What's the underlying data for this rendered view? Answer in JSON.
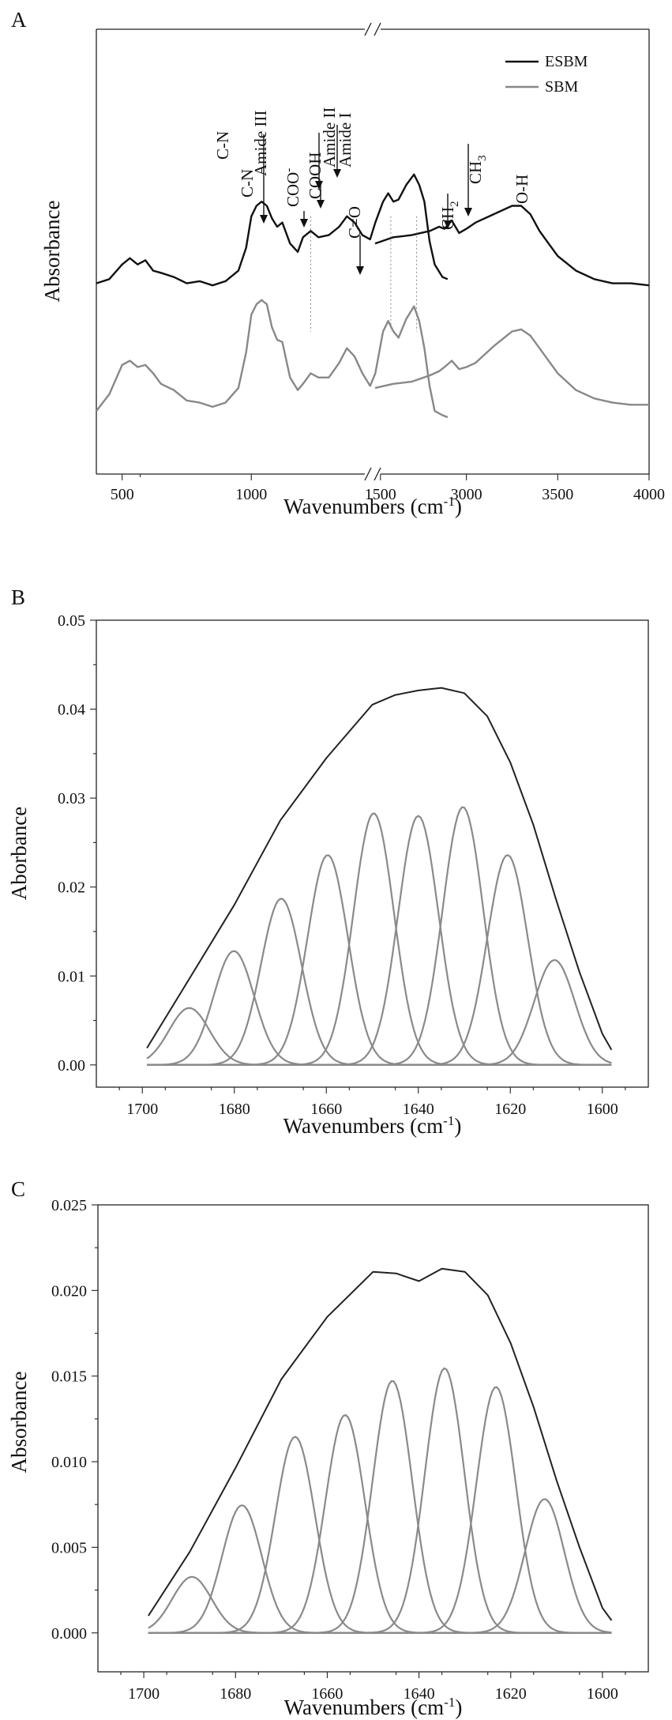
{
  "chart_data": [
    {
      "panel": "A",
      "type": "line",
      "xlabel": "Wavenumbers (cm-1)",
      "xlabel_main": "Wavenumbers (cm",
      "xlabel_sup": "-1",
      "xlabel_end": ")",
      "ylabel": "Absorbance",
      "xticks": [
        "500",
        "1000",
        "1500",
        "3000",
        "3500",
        "4000"
      ],
      "axis_break": true,
      "legend": {
        "position": "top-right",
        "entries": [
          {
            "label": "ESBM",
            "color": "#111111"
          },
          {
            "label": "SBM",
            "color": "#888888"
          }
        ]
      },
      "annotations": [
        {
          "text": "C-N",
          "wavenumber": 1040
        },
        {
          "text": "C-N",
          "wavenumber": 1110
        },
        {
          "text": "Amide III",
          "wavenumber": 1230
        },
        {
          "text": "COO-",
          "wavenumber": 1400
        },
        {
          "text": "COOH",
          "wavenumber": 1460
        },
        {
          "text": "Amide II",
          "wavenumber": 1540
        },
        {
          "text": "Amide I",
          "wavenumber": 1640
        },
        {
          "text": "C=O",
          "wavenumber": 1740
        },
        {
          "text": "CH2",
          "wavenumber": 2850
        },
        {
          "text": "CH3",
          "wavenumber": 2960
        },
        {
          "text": "O-H",
          "wavenumber": 3280
        }
      ],
      "series": [
        {
          "name": "ESBM",
          "color": "#111111",
          "segments": [
            {
              "x": [
                400,
                450,
                500,
                530,
                560,
                590,
                620,
                650,
                700,
                750,
                800,
                850,
                900,
                950,
                980,
                1000,
                1020,
                1040,
                1060,
                1080,
                1100,
                1120,
                1150,
                1180,
                1200,
                1230,
                1260,
                1300,
                1340,
                1370,
                1400,
                1430,
                1460,
                1480,
                1510,
                1530,
                1550,
                1570,
                1600,
                1630,
                1650,
                1670,
                1690,
                1710,
                1740,
                1760
              ],
              "y": [
                0.73,
                0.75,
                0.82,
                0.85,
                0.82,
                0.84,
                0.79,
                0.78,
                0.76,
                0.73,
                0.74,
                0.72,
                0.74,
                0.79,
                0.9,
                1.05,
                1.1,
                1.12,
                1.1,
                1.04,
                1.0,
                1.02,
                0.92,
                0.88,
                0.95,
                0.98,
                0.95,
                0.96,
                1.0,
                1.05,
                1.02,
                0.96,
                0.94,
                1.02,
                1.12,
                1.16,
                1.12,
                1.13,
                1.2,
                1.25,
                1.2,
                1.12,
                0.93,
                0.82,
                0.76,
                0.75
              ]
            },
            {
              "x": [
                2500,
                2600,
                2700,
                2800,
                2850,
                2880,
                2920,
                2960,
                3000,
                3050,
                3150,
                3250,
                3300,
                3350,
                3400,
                3450,
                3500,
                3600,
                3700,
                3800,
                3900,
                4000
              ],
              "y": [
                0.92,
                0.95,
                0.96,
                0.98,
                1.0,
                0.99,
                1.03,
                0.97,
                0.99,
                1.02,
                1.06,
                1.1,
                1.1,
                1.06,
                0.98,
                0.92,
                0.86,
                0.79,
                0.75,
                0.73,
                0.73,
                0.72
              ]
            }
          ]
        },
        {
          "name": "SBM",
          "color": "#888888",
          "segments": [
            {
              "x": [
                400,
                450,
                500,
                530,
                560,
                590,
                620,
                650,
                700,
                750,
                800,
                850,
                900,
                950,
                980,
                1000,
                1020,
                1040,
                1060,
                1080,
                1100,
                1120,
                1150,
                1180,
                1200,
                1230,
                1260,
                1300,
                1340,
                1370,
                1400,
                1430,
                1460,
                1480,
                1510,
                1530,
                1550,
                1570,
                1600,
                1630,
                1650,
                1670,
                1690,
                1710,
                1740,
                1760
              ],
              "y": [
                0.12,
                0.2,
                0.34,
                0.36,
                0.33,
                0.34,
                0.3,
                0.25,
                0.22,
                0.17,
                0.16,
                0.14,
                0.16,
                0.23,
                0.4,
                0.58,
                0.63,
                0.65,
                0.63,
                0.52,
                0.46,
                0.45,
                0.28,
                0.22,
                0.25,
                0.3,
                0.28,
                0.28,
                0.35,
                0.42,
                0.38,
                0.3,
                0.24,
                0.3,
                0.5,
                0.55,
                0.5,
                0.47,
                0.56,
                0.62,
                0.55,
                0.42,
                0.24,
                0.12,
                0.1,
                0.09
              ]
            },
            {
              "x": [
                2500,
                2600,
                2700,
                2800,
                2850,
                2880,
                2920,
                2960,
                3000,
                3050,
                3150,
                3250,
                3300,
                3350,
                3400,
                3450,
                3500,
                3600,
                3700,
                3800,
                3900,
                4000
              ],
              "y": [
                0.23,
                0.25,
                0.26,
                0.29,
                0.31,
                0.33,
                0.36,
                0.32,
                0.33,
                0.35,
                0.43,
                0.5,
                0.51,
                0.48,
                0.42,
                0.36,
                0.3,
                0.22,
                0.18,
                0.16,
                0.15,
                0.15
              ]
            }
          ]
        }
      ]
    },
    {
      "panel": "B",
      "type": "line",
      "xlabel": "Wavenumbers (cm-1)",
      "xlabel_main": "Wavenumbers (cm",
      "xlabel_sup": "-1",
      "xlabel_end": ")",
      "ylabel": "Aborbance",
      "xlim": [
        1710,
        1590
      ],
      "ylim": [
        -0.0025,
        0.05
      ],
      "xticks": [
        "1700",
        "1680",
        "1660",
        "1640",
        "1620",
        "1600"
      ],
      "yticks": [
        "0.00",
        "0.01",
        "0.02",
        "0.03",
        "0.04",
        "0.05"
      ],
      "envelope": {
        "x": [
          1699,
          1690,
          1680,
          1670,
          1660,
          1650,
          1645,
          1640,
          1635,
          1630,
          1625,
          1620,
          1615,
          1610,
          1605,
          1600,
          1598
        ],
        "y": [
          0.0019,
          0.0095,
          0.018,
          0.0275,
          0.0345,
          0.0405,
          0.0416,
          0.0421,
          0.0424,
          0.0418,
          0.0392,
          0.034,
          0.027,
          0.0185,
          0.0105,
          0.0035,
          0.0017
        ]
      },
      "components": [
        {
          "center": 1689.8,
          "height": 0.0064,
          "sigma": 4.4
        },
        {
          "center": 1680.1,
          "height": 0.0128,
          "sigma": 4.4
        },
        {
          "center": 1669.8,
          "height": 0.0187,
          "sigma": 4.4
        },
        {
          "center": 1659.7,
          "height": 0.0236,
          "sigma": 4.4
        },
        {
          "center": 1649.7,
          "height": 0.0283,
          "sigma": 4.4
        },
        {
          "center": 1640.0,
          "height": 0.028,
          "sigma": 4.4
        },
        {
          "center": 1630.3,
          "height": 0.029,
          "sigma": 4.4
        },
        {
          "center": 1620.6,
          "height": 0.0236,
          "sigma": 4.4
        },
        {
          "center": 1610.4,
          "height": 0.0118,
          "sigma": 4.4
        }
      ],
      "component_range": [
        1699,
        1598
      ]
    },
    {
      "panel": "C",
      "type": "line",
      "xlabel": "Wavenumbers (cm-1)",
      "xlabel_main": "Wavenumbers (cm",
      "xlabel_sup": "-1",
      "xlabel_end": ")",
      "ylabel": "Absorbance",
      "xlim": [
        1710,
        1590
      ],
      "ylim": [
        -0.0025,
        0.0275
      ],
      "xticks": [
        "1700",
        "1680",
        "1660",
        "1640",
        "1620",
        "1600"
      ],
      "yticks": [
        "0.000",
        "0.005",
        "0.010",
        "0.015",
        "0.020",
        "0.025"
      ],
      "envelope": {
        "x": [
          1699,
          1690,
          1680,
          1670,
          1660,
          1650,
          1645,
          1640,
          1635,
          1630,
          1625,
          1620,
          1615,
          1610,
          1605,
          1600,
          1598
        ],
        "y": [
          0.0011,
          0.0052,
          0.0106,
          0.0163,
          0.0203,
          0.0232,
          0.0231,
          0.0226,
          0.0234,
          0.0232,
          0.0217,
          0.0186,
          0.0145,
          0.0098,
          0.0055,
          0.0016,
          0.0008
        ]
      },
      "components": [
        {
          "center": 1689.5,
          "height": 0.0036,
          "sigma": 4.3
        },
        {
          "center": 1678.6,
          "height": 0.0082,
          "sigma": 4.3
        },
        {
          "center": 1667.0,
          "height": 0.0126,
          "sigma": 4.3
        },
        {
          "center": 1656.1,
          "height": 0.014,
          "sigma": 4.3
        },
        {
          "center": 1645.8,
          "height": 0.0162,
          "sigma": 4.3
        },
        {
          "center": 1634.4,
          "height": 0.017,
          "sigma": 4.3
        },
        {
          "center": 1623.2,
          "height": 0.0158,
          "sigma": 4.3
        },
        {
          "center": 1612.6,
          "height": 0.0086,
          "sigma": 4.3
        }
      ],
      "component_range": [
        1699,
        1598
      ]
    }
  ]
}
